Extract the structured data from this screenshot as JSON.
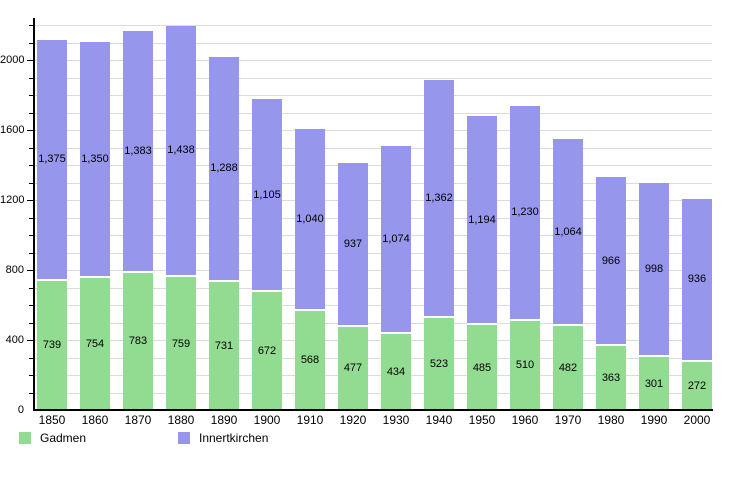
{
  "chart_data": {
    "type": "bar",
    "stacked": true,
    "categories": [
      "1850",
      "1860",
      "1870",
      "1880",
      "1890",
      "1900",
      "1910",
      "1920",
      "1930",
      "1940",
      "1950",
      "1960",
      "1970",
      "1980",
      "1990",
      "2000"
    ],
    "series": [
      {
        "name": "Gadmen",
        "color": "#92DC92",
        "values": [
          739,
          754,
          783,
          759,
          731,
          672,
          568,
          477,
          434,
          523,
          485,
          510,
          482,
          363,
          301,
          272
        ],
        "labels": [
          "739",
          "754",
          "783",
          "759",
          "731",
          "672",
          "568",
          "477",
          "434",
          "523",
          "485",
          "510",
          "482",
          "363",
          "301",
          "272"
        ]
      },
      {
        "name": "Innertkirchen",
        "color": "#9696EC",
        "values": [
          1375,
          1350,
          1383,
          1438,
          1288,
          1105,
          1040,
          937,
          1074,
          1362,
          1194,
          1230,
          1064,
          966,
          998,
          936
        ],
        "labels": [
          "1,375",
          "1,350",
          "1,383",
          "1,438",
          "1,288",
          "1,105",
          "1,040",
          "937",
          "1,074",
          "1,362",
          "1,194",
          "1,230",
          "1,064",
          "966",
          "998",
          "936"
        ]
      }
    ],
    "xlabel": "",
    "ylabel": "",
    "ylim": [
      0,
      2240
    ],
    "y_axis": {
      "minor_step": 100,
      "major_step": 400,
      "major_ticks": [
        0,
        400,
        800,
        1200,
        1600,
        2000
      ],
      "major_tick_labels": [
        "0",
        "400",
        "800",
        "1200",
        "1600",
        "2000"
      ],
      "grid": true,
      "gridline_color": "#dcdcdc"
    },
    "legend_position": "bottom-left",
    "value_labels": "inside-center"
  },
  "legend": {
    "items": [
      {
        "label": "Gadmen",
        "color": "#92DC92"
      },
      {
        "label": "Innertkirchen",
        "color": "#9696EC"
      }
    ]
  }
}
